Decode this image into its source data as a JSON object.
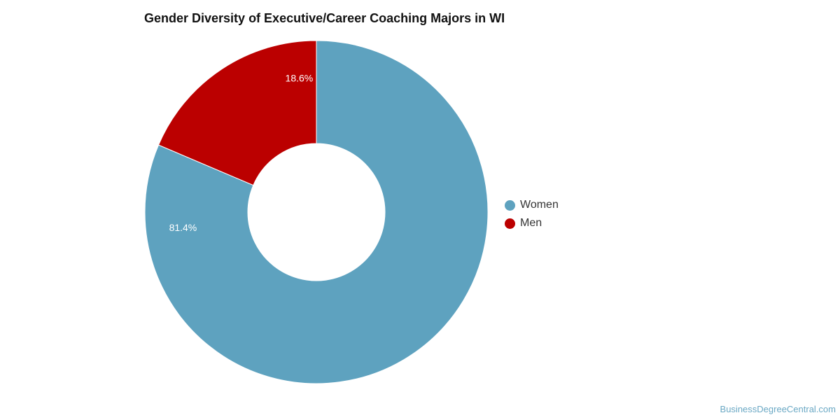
{
  "chart_data": {
    "type": "pie",
    "style": "donut",
    "title": "Gender Diversity of Executive/Career Coaching Majors in WI",
    "categories": [
      "Women",
      "Men"
    ],
    "values": [
      81.4,
      18.6
    ],
    "labels": [
      "81.4%",
      "18.6%"
    ],
    "colors": [
      "#5ea2bf",
      "#bb0000"
    ],
    "legend_position": "right"
  },
  "watermark": "BusinessDegreeCentral.com"
}
